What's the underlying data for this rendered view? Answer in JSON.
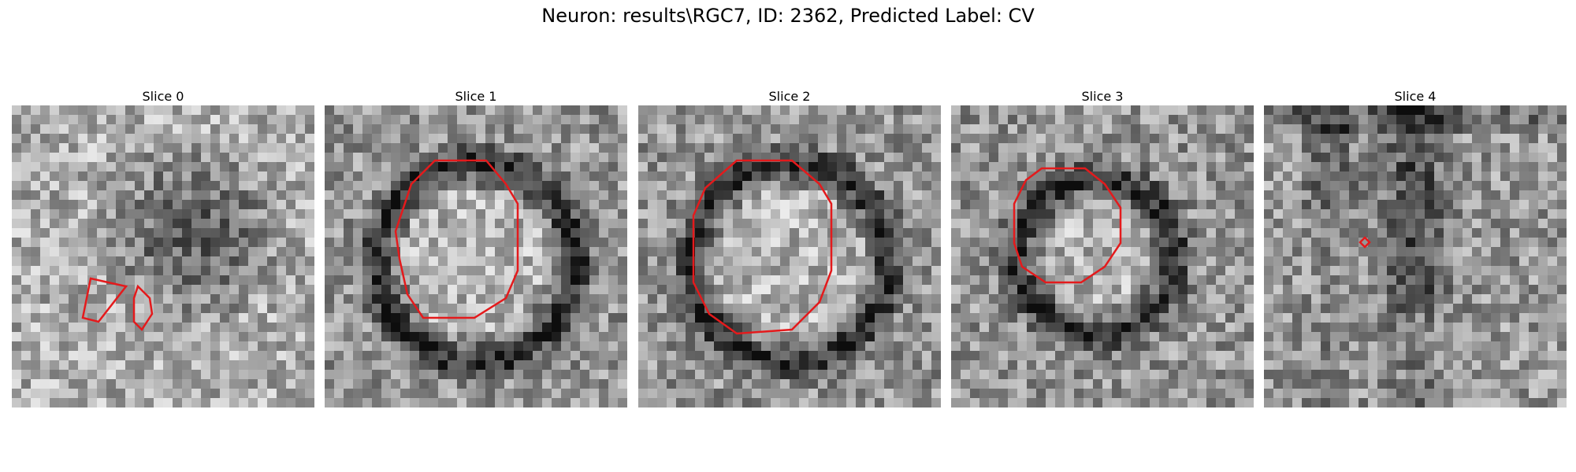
{
  "figure": {
    "title": "Neuron: results\\RGC7, ID: 2362, Predicted Label: CV"
  },
  "panels": [
    {
      "title": "Slice 0",
      "style": "light-noise"
    },
    {
      "title": "Slice 1",
      "style": "ring-large"
    },
    {
      "title": "Slice 2",
      "style": "ring-large"
    },
    {
      "title": "Slice 3",
      "style": "ring-small"
    },
    {
      "title": "Slice 4",
      "style": "vertical-dark"
    }
  ],
  "colors": {
    "contour": "#e41a1c",
    "background": "#ffffff"
  }
}
